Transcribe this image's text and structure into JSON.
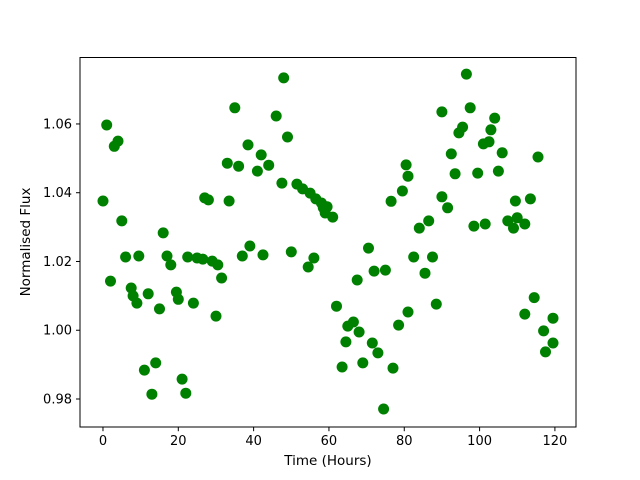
{
  "figure": {
    "background_color": "#ffffff",
    "axes_edge_color": "#000000"
  },
  "chart_data": {
    "type": "scatter",
    "title": "",
    "xlabel": "Time (Hours)",
    "ylabel": "Normalised Flux",
    "marker_color": "#008000",
    "marker_shape": "circle",
    "grid": false,
    "legend": "none",
    "xlim": [
      -6.1,
      125.6
    ],
    "ylim": [
      0.9718,
      1.0793
    ],
    "x_ticks": [
      0,
      20,
      40,
      60,
      80,
      100,
      120
    ],
    "x_tick_labels": [
      "0",
      "20",
      "40",
      "60",
      "80",
      "100",
      "120"
    ],
    "y_ticks": [
      0.98,
      1.0,
      1.02,
      1.04,
      1.06
    ],
    "y_tick_labels": [
      "0.98",
      "1.00",
      "1.02",
      "1.04",
      "1.06"
    ],
    "points": [
      [
        0,
        1.0376
      ],
      [
        1,
        1.0597
      ],
      [
        2,
        1.0143
      ],
      [
        3,
        1.0535
      ],
      [
        4,
        1.055
      ],
      [
        5,
        1.0318
      ],
      [
        6,
        1.0213
      ],
      [
        7.5,
        1.0123
      ],
      [
        8,
        1.01
      ],
      [
        9,
        1.0079
      ],
      [
        9.5,
        1.0216
      ],
      [
        11,
        0.9884
      ],
      [
        12,
        1.0106
      ],
      [
        13,
        0.9814
      ],
      [
        14,
        0.9905
      ],
      [
        15,
        1.0062
      ],
      [
        16,
        1.0283
      ],
      [
        17,
        1.0216
      ],
      [
        18,
        1.019
      ],
      [
        19.5,
        1.0111
      ],
      [
        20,
        1.009
      ],
      [
        21,
        0.9858
      ],
      [
        22,
        0.9817
      ],
      [
        22.5,
        1.0213
      ],
      [
        24,
        1.0079
      ],
      [
        25,
        1.021
      ],
      [
        26.5,
        1.0207
      ],
      [
        27,
        1.0385
      ],
      [
        28,
        1.0379
      ],
      [
        29,
        1.0201
      ],
      [
        30,
        1.0041
      ],
      [
        30.5,
        1.019
      ],
      [
        31.5,
        1.0152
      ],
      [
        33,
        1.0486
      ],
      [
        33.5,
        1.0376
      ],
      [
        35,
        1.0647
      ],
      [
        36,
        1.0477
      ],
      [
        37,
        1.0216
      ],
      [
        38.5,
        1.0539
      ],
      [
        39,
        1.0245
      ],
      [
        41,
        1.0463
      ],
      [
        42,
        1.051
      ],
      [
        42.5,
        1.0219
      ],
      [
        44,
        1.048
      ],
      [
        46,
        1.0623
      ],
      [
        47.5,
        1.0428
      ],
      [
        48,
        1.0734
      ],
      [
        49,
        1.0562
      ],
      [
        50,
        1.0228
      ],
      [
        51.5,
        1.0425
      ],
      [
        53,
        1.0411
      ],
      [
        54.5,
        1.0184
      ],
      [
        55,
        1.0399
      ],
      [
        56,
        1.021
      ],
      [
        56.5,
        1.0382
      ],
      [
        58,
        1.037
      ],
      [
        58.5,
        1.0356
      ],
      [
        59,
        1.0341
      ],
      [
        59.5,
        1.0359
      ],
      [
        61,
        1.0329
      ],
      [
        62,
        1.007
      ],
      [
        63.5,
        0.9893
      ],
      [
        64.5,
        0.9966
      ],
      [
        65,
        1.0012
      ],
      [
        66.5,
        1.0024
      ],
      [
        67.5,
        1.0146
      ],
      [
        68,
        0.9995
      ],
      [
        69,
        0.9905
      ],
      [
        70.5,
        1.0239
      ],
      [
        71.5,
        0.9963
      ],
      [
        72,
        1.0172
      ],
      [
        73,
        0.9934
      ],
      [
        74.5,
        0.9771
      ],
      [
        75,
        1.0175
      ],
      [
        76.5,
        1.0375
      ],
      [
        77,
        0.989
      ],
      [
        78.5,
        1.0015
      ],
      [
        79.5,
        1.0405
      ],
      [
        80.5,
        1.0481
      ],
      [
        81,
        1.0448
      ],
      [
        81,
        1.0053
      ],
      [
        82.5,
        1.0213
      ],
      [
        84,
        1.0297
      ],
      [
        85.5,
        1.0166
      ],
      [
        86.5,
        1.0318
      ],
      [
        87.5,
        1.0213
      ],
      [
        88.5,
        1.0076
      ],
      [
        90,
        1.0635
      ],
      [
        90,
        1.0388
      ],
      [
        91.5,
        1.0356
      ],
      [
        92.5,
        1.0513
      ],
      [
        93.5,
        1.0455
      ],
      [
        94.5,
        1.0574
      ],
      [
        95.5,
        1.0591
      ],
      [
        96.5,
        1.0745
      ],
      [
        97.5,
        1.0647
      ],
      [
        98.5,
        1.0303
      ],
      [
        99.5,
        1.0457
      ],
      [
        101,
        1.0542
      ],
      [
        101.5,
        1.0309
      ],
      [
        102.5,
        1.0548
      ],
      [
        103,
        1.0583
      ],
      [
        104,
        1.0617
      ],
      [
        105,
        1.0463
      ],
      [
        106,
        1.0516
      ],
      [
        107.5,
        1.0318
      ],
      [
        109,
        1.0297
      ],
      [
        109.5,
        1.0376
      ],
      [
        110,
        1.0327
      ],
      [
        112,
        1.0309
      ],
      [
        112,
        1.0047
      ],
      [
        113.5,
        1.0382
      ],
      [
        114.5,
        1.0095
      ],
      [
        115.5,
        1.0504
      ],
      [
        117,
        0.9998
      ],
      [
        117.5,
        0.9937
      ],
      [
        119.5,
        1.0035
      ],
      [
        119.5,
        0.9963
      ]
    ]
  }
}
